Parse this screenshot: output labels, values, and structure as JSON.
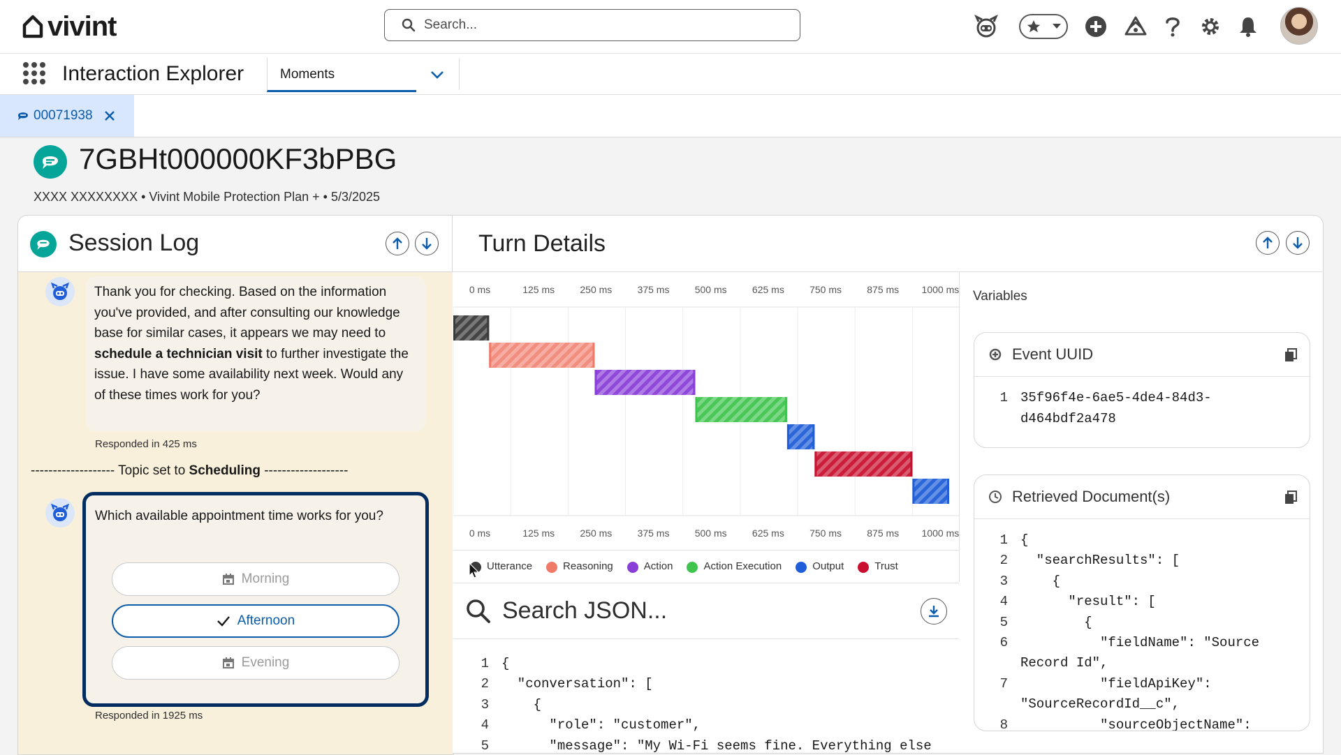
{
  "topbar": {
    "brand": "vivint",
    "search_placeholder": "Search..."
  },
  "appnav": {
    "app_name": "Interaction Explorer",
    "nav_tab": "Moments"
  },
  "subtab": {
    "label": "00071938"
  },
  "record": {
    "title": "7GBHt000000KF3bPBG",
    "subtitle": "XXXX XXXXXXXX • Vivint Mobile Protection Plan + • 5/3/2025"
  },
  "session_log": {
    "title": "Session Log",
    "message1": {
      "text_a": "Thank you for checking. Based on the information you've provided, and after consulting our knowledge base for similar cases, it appears we may need to ",
      "text_bold": "schedule a technician visit",
      "text_b": " to further investigate the issue. I have some availability next week. Would any of these times work for you?",
      "meta": "Responded in 425 ms"
    },
    "topic": {
      "dashes_left": "-------------------",
      "prefix": "Topic set to",
      "name": "Scheduling",
      "dashes_right": "-------------------"
    },
    "message2": {
      "question": "Which available appointment time works for you?",
      "options": [
        "Morning",
        "Afternoon",
        "Evening"
      ],
      "selected": "Afternoon",
      "meta": "Responded in 1925 ms"
    }
  },
  "turn_details": {
    "title": "Turn Details"
  },
  "chart_data": {
    "type": "gantt",
    "x_ticks": [
      "0 ms",
      "125 ms",
      "250 ms",
      "375 ms",
      "500 ms",
      "625 ms",
      "750 ms",
      "875 ms",
      "1000 ms"
    ],
    "xlim": [
      0,
      1080
    ],
    "legend": [
      {
        "name": "Utterance",
        "color": "#3a3a3a"
      },
      {
        "name": "Reasoning",
        "color": "#f07a68"
      },
      {
        "name": "Action",
        "color": "#8a3ed8"
      },
      {
        "name": "Action Execution",
        "color": "#3fc44e"
      },
      {
        "name": "Output",
        "color": "#1f5ed8"
      },
      {
        "name": "Trust",
        "color": "#c8102e"
      }
    ],
    "bars": [
      {
        "category": "Utterance",
        "start": 0,
        "end": 78
      },
      {
        "category": "Reasoning",
        "start": 78,
        "end": 308
      },
      {
        "category": "Action",
        "start": 308,
        "end": 527
      },
      {
        "category": "Action Execution",
        "start": 527,
        "end": 727
      },
      {
        "category": "Output",
        "start": 727,
        "end": 787
      },
      {
        "category": "Trust",
        "start": 787,
        "end": 1000
      },
      {
        "category": "Output",
        "start": 1000,
        "end": 1080
      }
    ]
  },
  "json_viewer": {
    "search_placeholder": "Search JSON...",
    "lines": [
      {
        "n": "1",
        "t": "{"
      },
      {
        "n": "2",
        "t": "  \"conversation\": ["
      },
      {
        "n": "3",
        "t": "    {"
      },
      {
        "n": "4",
        "t": "      \"role\": \"customer\","
      },
      {
        "n": "5",
        "t": "      \"message\": \"My Wi-Fi seems fine. Everything else"
      }
    ]
  },
  "variables": {
    "title": "Variables",
    "event_uuid": {
      "title": "Event UUID",
      "lines": [
        {
          "n": "1",
          "t": "35f96f4e-6ae5-4de4-84d3-"
        },
        {
          "n": "",
          "t": "d464bdf2a478"
        }
      ]
    },
    "retrieved_docs": {
      "title": "Retrieved Document(s)",
      "lines": [
        {
          "n": "1",
          "t": "{"
        },
        {
          "n": "2",
          "t": "  \"searchResults\": ["
        },
        {
          "n": "3",
          "t": "    {"
        },
        {
          "n": "4",
          "t": "      \"result\": ["
        },
        {
          "n": "5",
          "t": "        {"
        },
        {
          "n": "6",
          "t": "          \"fieldName\": \"Source"
        },
        {
          "n": "",
          "t": "Record Id\","
        },
        {
          "n": "7",
          "t": "          \"fieldApiKey\":"
        },
        {
          "n": "",
          "t": "\"SourceRecordId__c\","
        },
        {
          "n": "8",
          "t": "          \"sourceObjectName\":"
        }
      ]
    }
  }
}
